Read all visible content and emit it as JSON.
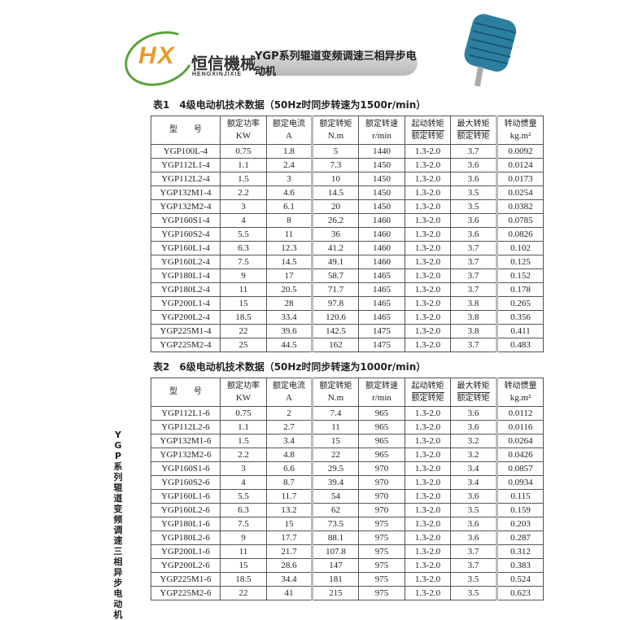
{
  "brand": {
    "logo_letters": "HX",
    "name_cn": "恒信機械",
    "name_en": "HENGXINJIXIE"
  },
  "banner": "YGP系列辊道变频调速三相异步电动机",
  "side_title": "YGP系列辊道变频调速三相异步电动机",
  "headers": [
    {
      "l1": "型　　号",
      "l2": ""
    },
    {
      "l1": "额定功率",
      "l2": "KW"
    },
    {
      "l1": "额定电流",
      "l2": "A"
    },
    {
      "l1": "额定转矩",
      "l2": "N.m"
    },
    {
      "l1": "额定转速",
      "l2": "r/min"
    },
    {
      "l1": "起动转矩",
      "l2": "额定转矩",
      "frac": true
    },
    {
      "l1": "最大转矩",
      "l2": "额定转矩",
      "frac": true
    },
    {
      "l1": "转动惯量",
      "l2": "kg.m²"
    }
  ],
  "table1": {
    "caption": "表1　4级电动机技术数据（50Hz时同步转速为1500r/min）",
    "rows": [
      [
        "YGP100L-4",
        "0.75",
        "1.8",
        "5",
        "1440",
        "1.3-2.0",
        "3.7",
        "0.0092"
      ],
      [
        "YGP112L1-4",
        "1.1",
        "2.4",
        "7.3",
        "1450",
        "1.3-2.0",
        "3.6",
        "0.0124"
      ],
      [
        "YGP112L2-4",
        "1.5",
        "3",
        "10",
        "1450",
        "1.3-2.0",
        "3.6",
        "0.0173"
      ],
      [
        "YGP132M1-4",
        "2.2",
        "4.6",
        "14.5",
        "1450",
        "1.3-2.0",
        "3.5",
        "0.0254"
      ],
      [
        "YGP132M2-4",
        "3",
        "6.1",
        "20",
        "1450",
        "1.3-2.0",
        "3.5",
        "0.0382"
      ],
      [
        "YGP160S1-4",
        "4",
        "8",
        "26.2",
        "1460",
        "1.3-2.0",
        "3.6",
        "0.0785"
      ],
      [
        "YGP160S2-4",
        "5.5",
        "11",
        "36",
        "1460",
        "1.3-2.0",
        "3.6",
        "0.0826"
      ],
      [
        "YGP160L1-4",
        "6.3",
        "12.3",
        "41.2",
        "1460",
        "1.3-2.0",
        "3.7",
        "0.102"
      ],
      [
        "YGP160L2-4",
        "7.5",
        "14.5",
        "49.1",
        "1460",
        "1.3-2.0",
        "3.7",
        "0.125"
      ],
      [
        "YGP180L1-4",
        "9",
        "17",
        "58.7",
        "1465",
        "1.3-2.0",
        "3.7",
        "0.152"
      ],
      [
        "YGP180L2-4",
        "11",
        "20.5",
        "71.7",
        "1465",
        "1.3-2.0",
        "3.7",
        "0.178"
      ],
      [
        "YGP200L1-4",
        "15",
        "28",
        "97.8",
        "1465",
        "1.3-2.0",
        "3.8",
        "0.265"
      ],
      [
        "YGP200L2-4",
        "18.5",
        "33.4",
        "120.6",
        "1465",
        "1.3-2.0",
        "3.8",
        "0.356"
      ],
      [
        "YGP225M1-4",
        "22",
        "39.6",
        "142.5",
        "1475",
        "1.3-2.0",
        "3.8",
        "0.411"
      ],
      [
        "YGP225M2-4",
        "25",
        "44.5",
        "162",
        "1475",
        "1.3-2.0",
        "3.7",
        "0.483"
      ]
    ]
  },
  "table2": {
    "caption": "表2　6级电动机技术数据（50Hz时同步转速为1000r/min）",
    "rows": [
      [
        "YGP112L1-6",
        "0.75",
        "2",
        "7.4",
        "965",
        "1.3-2.0",
        "3.6",
        "0.0112"
      ],
      [
        "YGP112L2-6",
        "1.1",
        "2.7",
        "11",
        "965",
        "1.3-2.0",
        "3.6",
        "0.0116"
      ],
      [
        "YGP132M1-6",
        "1.5",
        "3.4",
        "15",
        "965",
        "1.3-2.0",
        "3.2",
        "0.0264"
      ],
      [
        "YGP132M2-6",
        "2.2",
        "4.8",
        "22",
        "965",
        "1.3-2.0",
        "3.2",
        "0.0426"
      ],
      [
        "YGP160S1-6",
        "3",
        "6.6",
        "29.5",
        "970",
        "1.3-2.0",
        "3.4",
        "0.0857"
      ],
      [
        "YGP160S2-6",
        "4",
        "8.7",
        "39.4",
        "970",
        "1.3-2.0",
        "3.4",
        "0.0934"
      ],
      [
        "YGP160L1-6",
        "5.5",
        "11.7",
        "54",
        "970",
        "1.3-2.0",
        "3.6",
        "0.115"
      ],
      [
        "YGP160L2-6",
        "6.3",
        "13.2",
        "62",
        "970",
        "1.3-2.0",
        "3.5",
        "0.159"
      ],
      [
        "YGP180L1-6",
        "7.5",
        "15",
        "73.5",
        "975",
        "1.3-2.0",
        "3.6",
        "0.203"
      ],
      [
        "YGP180L2-6",
        "9",
        "17.7",
        "88.1",
        "975",
        "1.3-2.0",
        "3.6",
        "0.287"
      ],
      [
        "YGP200L1-6",
        "11",
        "21.7",
        "107.8",
        "975",
        "1.3-2.0",
        "3.7",
        "0.312"
      ],
      [
        "YGP200L2-6",
        "15",
        "28.6",
        "147",
        "975",
        "1.3-2.0",
        "3.7",
        "0.383"
      ],
      [
        "YGP225M1-6",
        "18.5",
        "34.4",
        "181",
        "975",
        "1.3-2.0",
        "3.5",
        "0.524"
      ],
      [
        "YGP225M2-6",
        "22",
        "41",
        "215",
        "975",
        "1.3-2.0",
        "3.5",
        "0.623"
      ]
    ]
  }
}
